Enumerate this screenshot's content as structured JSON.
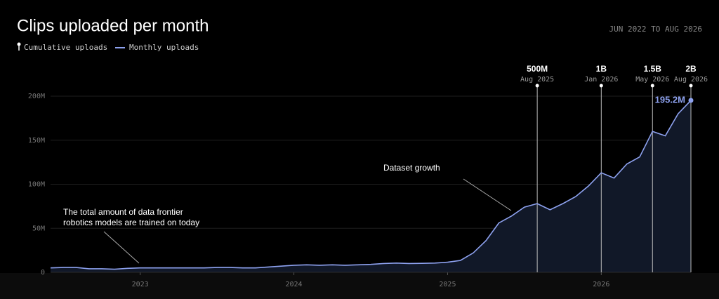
{
  "chart_data": {
    "type": "area",
    "title": "Clips uploaded per month",
    "date_range": "JUN 2022 TO AUG 2026",
    "cumulative_label": "Cumulative uploads",
    "categories": [
      null,
      null,
      null,
      null,
      null,
      null,
      null,
      "2023",
      null,
      null,
      null,
      null,
      null,
      null,
      null,
      null,
      null,
      null,
      null,
      "2024",
      null,
      null,
      null,
      null,
      null,
      null,
      null,
      null,
      null,
      null,
      null,
      "2025",
      null,
      null,
      null,
      null,
      null,
      null,
      null,
      null,
      null,
      null,
      null,
      "2026",
      null,
      null,
      null,
      null,
      null,
      null,
      null
    ],
    "series": [
      {
        "name": "Monthly uploads",
        "color": "#8ea2f0",
        "values": [
          5,
          5.5,
          5.5,
          4,
          4,
          3.5,
          4.5,
          5,
          5,
          5,
          5,
          5,
          5,
          5.5,
          5.5,
          5,
          5,
          6,
          7,
          8,
          8.5,
          8,
          8.5,
          8,
          8.5,
          9,
          10,
          10.5,
          10,
          10.2,
          10.5,
          11.5,
          13.5,
          22,
          36,
          56,
          64,
          74,
          78,
          71,
          78,
          86,
          98,
          113,
          107,
          123,
          131,
          160,
          155,
          180,
          195.2
        ]
      }
    ],
    "end_label": "195.2M",
    "ylim": [
      0,
      200
    ],
    "yticks": [
      0,
      {
        "value": 50,
        "label": "50M"
      },
      {
        "value": 100,
        "label": "100M"
      },
      {
        "value": 150,
        "label": "150M"
      },
      {
        "value": 200,
        "label": "200M"
      }
    ],
    "grid": true,
    "milestones": [
      {
        "label": "500M",
        "date": "Aug 2025",
        "index": 38
      },
      {
        "label": "1B",
        "date": "Jan 2026",
        "index": 43
      },
      {
        "label": "1.5B",
        "date": "May 2026",
        "index": 47
      },
      {
        "label": "2B",
        "date": "Aug 2026",
        "index": 50
      }
    ],
    "annotations": [
      {
        "text": [
          "Dataset growth"
        ]
      },
      {
        "text": [
          "The total amount of data frontier",
          "robotics models are trained on today"
        ]
      }
    ]
  }
}
